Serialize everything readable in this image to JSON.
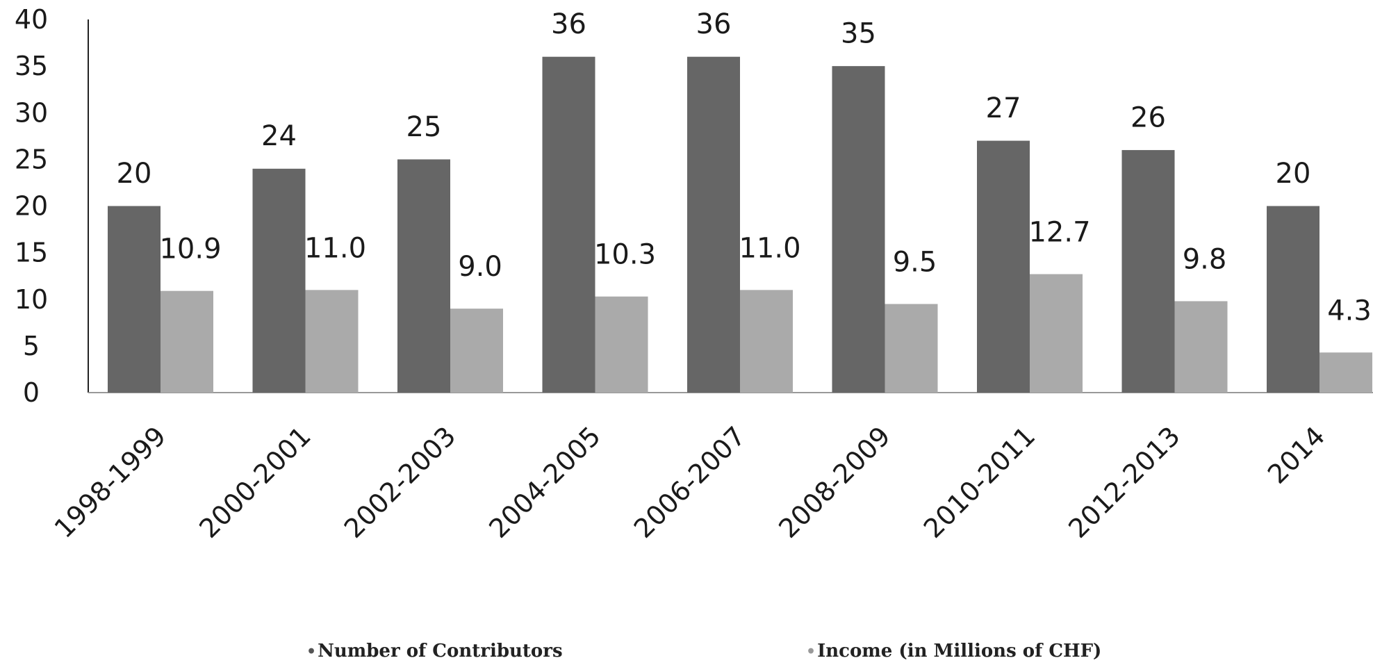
{
  "chart_data": {
    "type": "bar",
    "title": "",
    "xlabel": "",
    "ylabel": "",
    "ylim": [
      0,
      40
    ],
    "yticks": [
      0,
      5,
      10,
      15,
      20,
      25,
      30,
      35,
      40
    ],
    "grid": false,
    "legend_position": "bottom",
    "categories": [
      "1998-1999",
      "2000-2001",
      "2002-2003",
      "2004-2005",
      "2006-2007",
      "2008-2009",
      "2010-2011",
      "2012-2013",
      "2014"
    ],
    "series": [
      {
        "name": "Number of Contributors",
        "color": "#666666",
        "values": [
          20,
          24,
          25,
          36,
          36,
          35,
          27,
          26,
          20
        ],
        "labels": [
          "20",
          "24",
          "25",
          "36",
          "36",
          "35",
          "27",
          "26",
          "20"
        ]
      },
      {
        "name": "Income (in Millions of CHF)",
        "color": "#aaaaaa",
        "values": [
          10.9,
          11.0,
          9.0,
          10.3,
          11.0,
          9.5,
          12.7,
          9.8,
          4.3
        ],
        "labels": [
          "10.9",
          "11.0",
          "9.0",
          "10.3",
          "11.0",
          "9.5",
          "12.7",
          "9.8",
          "4.3"
        ]
      }
    ]
  },
  "legend": {
    "items": [
      {
        "marker": "•",
        "label": "Number of Contributors"
      },
      {
        "marker": "•",
        "label": "Income (in Millions of CHF)"
      }
    ]
  }
}
